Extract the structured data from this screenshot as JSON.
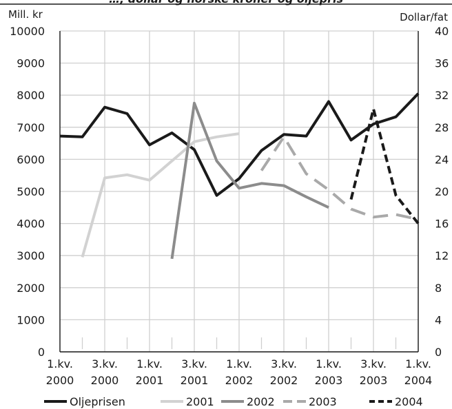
{
  "chart_data": {
    "type": "line",
    "title": "…, dollar og norske kroner og oljepris",
    "left_unit": "Mill. kr",
    "right_unit": "Dollar/fat",
    "y_left_ticks": [
      "0",
      "1000",
      "2000",
      "3000",
      "4000",
      "5000",
      "6000",
      "7000",
      "8000",
      "9000",
      "10000"
    ],
    "y_right_ticks": [
      "0",
      "4",
      "8",
      "12",
      "16",
      "20",
      "24",
      "28",
      "32",
      "36",
      "40"
    ],
    "ylim_left": [
      0,
      10000
    ],
    "ylim_right": [
      0,
      40
    ],
    "x_tick_labels": [
      {
        "line1": "1.kv.",
        "line2": "2000"
      },
      {
        "line1": "3.kv.",
        "line2": "2000"
      },
      {
        "line1": "1.kv.",
        "line2": "2001"
      },
      {
        "line1": "3.kv.",
        "line2": "2001"
      },
      {
        "line1": "1.kv.",
        "line2": "2002"
      },
      {
        "line1": "3.kv.",
        "line2": "2002"
      },
      {
        "line1": "1.kv.",
        "line2": "2003"
      },
      {
        "line1": "3.kv.",
        "line2": "2003"
      },
      {
        "line1": "1.kv.",
        "line2": "2004"
      }
    ],
    "x_label_positions": [
      0,
      2,
      4,
      6,
      8,
      10,
      12,
      14,
      16
    ],
    "xlim": [
      0,
      16
    ],
    "grid": true,
    "legend_position": "bottom",
    "series": [
      {
        "name": "Oljeprisen",
        "axis": "right",
        "color": "#1a1a1a",
        "dash": "solid",
        "points": [
          [
            0,
            26.9
          ],
          [
            1,
            26.8
          ],
          [
            2,
            30.5
          ],
          [
            3,
            29.7
          ],
          [
            4,
            25.8
          ],
          [
            5,
            27.3
          ],
          [
            6,
            25.2
          ],
          [
            7,
            19.5
          ],
          [
            8,
            21.6
          ],
          [
            9,
            25.1
          ],
          [
            10,
            27.1
          ],
          [
            11,
            26.9
          ],
          [
            12,
            31.2
          ],
          [
            13,
            26.4
          ],
          [
            14,
            28.4
          ],
          [
            15,
            29.3
          ],
          [
            16,
            32.2
          ]
        ]
      },
      {
        "name": "2001",
        "axis": "left",
        "color": "#d2d2d2",
        "dash": "solid",
        "points": [
          [
            1,
            2950
          ],
          [
            2,
            5420
          ],
          [
            3,
            5520
          ],
          [
            4,
            5350
          ],
          [
            5,
            5950
          ],
          [
            6,
            6550
          ],
          [
            7,
            6700
          ],
          [
            8,
            6800
          ]
        ]
      },
      {
        "name": "2002",
        "axis": "left",
        "color": "#8c8c8c",
        "dash": "solid",
        "points": [
          [
            5,
            2900
          ],
          [
            6,
            7750
          ],
          [
            7,
            5950
          ],
          [
            8,
            5100
          ],
          [
            9,
            5250
          ],
          [
            10,
            5180
          ],
          [
            11,
            4830
          ],
          [
            12,
            4500
          ]
        ]
      },
      {
        "name": "2003",
        "axis": "left",
        "color": "#a9a9a9",
        "dash": "longdash",
        "points": [
          [
            9,
            5650
          ],
          [
            10,
            6700
          ],
          [
            11,
            5550
          ],
          [
            12,
            5050
          ],
          [
            13,
            4450
          ],
          [
            14,
            4200
          ],
          [
            15,
            4280
          ],
          [
            16,
            4130
          ]
        ]
      },
      {
        "name": "2004",
        "axis": "left",
        "color": "#1a1a1a",
        "dash": "shortdash",
        "points": [
          [
            13,
            4750
          ],
          [
            14,
            7570
          ],
          [
            15,
            4880
          ],
          [
            16,
            4000
          ]
        ]
      }
    ]
  }
}
